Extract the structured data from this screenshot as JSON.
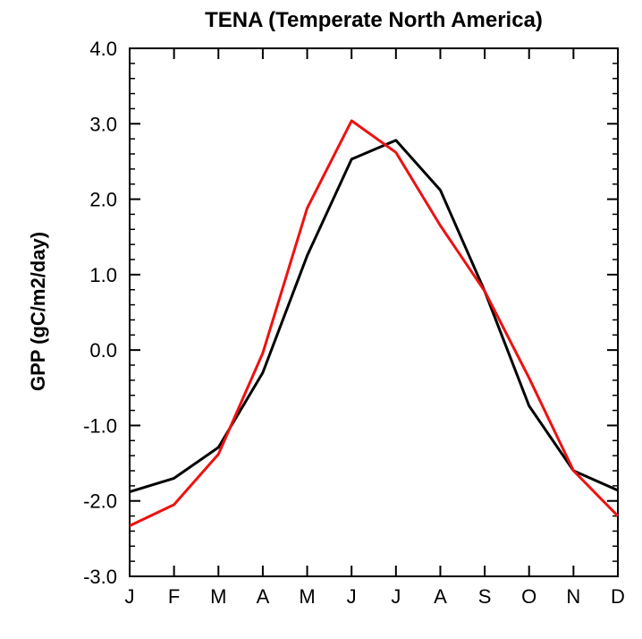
{
  "chart_data": {
    "type": "line",
    "title": "TENA (Temperate North America)",
    "xlabel": "",
    "ylabel": "GPP (gC/m2/day)",
    "categories": [
      "J",
      "F",
      "M",
      "A",
      "M",
      "J",
      "J",
      "A",
      "S",
      "O",
      "N",
      "D"
    ],
    "ylim": [
      -3.0,
      4.0
    ],
    "yticks": [
      "4.0",
      "3.0",
      "2.0",
      "1.0",
      "0.0",
      "-1.0",
      "-2.0",
      "-3.0"
    ],
    "ytick_values": [
      4.0,
      3.0,
      2.0,
      1.0,
      0.0,
      -1.0,
      -2.0,
      -3.0
    ],
    "grid": false,
    "legend": "none",
    "series": [
      {
        "color": "#000000",
        "values": [
          -1.88,
          -1.7,
          -1.29,
          -0.3,
          1.25,
          2.53,
          2.78,
          2.12,
          0.78,
          -0.74,
          -1.6,
          -1.86
        ]
      },
      {
        "color": "#ee1111",
        "values": [
          -2.33,
          -2.05,
          -1.38,
          -0.04,
          1.88,
          3.04,
          2.62,
          1.65,
          0.78,
          -0.37,
          -1.6,
          -2.2
        ]
      }
    ]
  }
}
